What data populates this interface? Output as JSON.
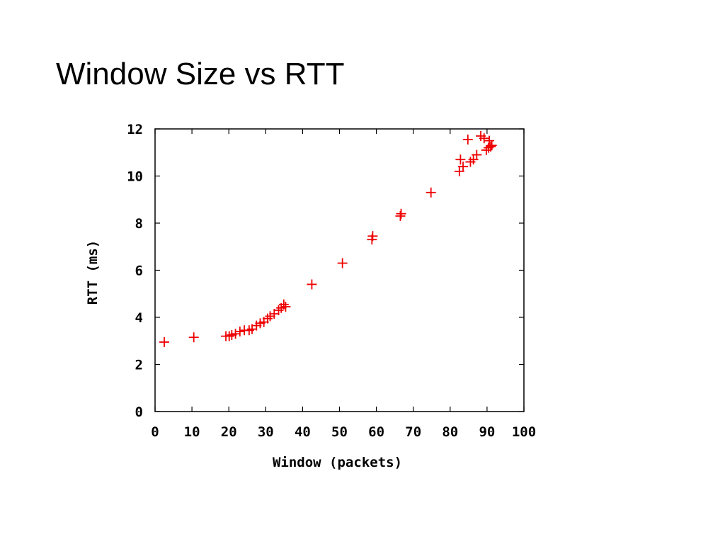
{
  "slide": {
    "title": "Window Size vs RTT"
  },
  "chart_data": {
    "type": "scatter",
    "title": "",
    "xlabel": "Window (packets)",
    "ylabel": "RTT (ms)",
    "xlim": [
      0,
      100
    ],
    "ylim": [
      0,
      12
    ],
    "xticks": [
      0,
      10,
      20,
      30,
      40,
      50,
      60,
      70,
      80,
      90,
      100
    ],
    "yticks": [
      0,
      2,
      4,
      6,
      8,
      10,
      12
    ],
    "grid": false,
    "legend": false,
    "marker": "plus",
    "colors": {
      "marker": "#ee0000",
      "axis": "#000000"
    },
    "series": [
      {
        "points": [
          [
            2.5,
            2.95
          ],
          [
            10.5,
            3.15
          ],
          [
            19.2,
            3.2
          ],
          [
            20.1,
            3.2
          ],
          [
            20.8,
            3.25
          ],
          [
            21.8,
            3.3
          ],
          [
            23.0,
            3.4
          ],
          [
            24.2,
            3.45
          ],
          [
            25.5,
            3.45
          ],
          [
            26.3,
            3.5
          ],
          [
            27.5,
            3.65
          ],
          [
            28.5,
            3.75
          ],
          [
            29.5,
            3.8
          ],
          [
            30.5,
            3.95
          ],
          [
            31.2,
            4.05
          ],
          [
            32.3,
            4.15
          ],
          [
            33.5,
            4.3
          ],
          [
            34.2,
            4.4
          ],
          [
            34.9,
            4.55
          ],
          [
            35.4,
            4.45
          ],
          [
            42.5,
            5.4
          ],
          [
            50.8,
            6.3
          ],
          [
            58.8,
            7.3
          ],
          [
            59.0,
            7.45
          ],
          [
            66.5,
            8.3
          ],
          [
            66.7,
            8.4
          ],
          [
            74.8,
            9.3
          ],
          [
            82.5,
            10.2
          ],
          [
            83.5,
            10.4
          ],
          [
            82.8,
            10.7
          ],
          [
            85.5,
            10.6
          ],
          [
            86.3,
            10.7
          ],
          [
            87.2,
            10.9
          ],
          [
            84.8,
            11.55
          ],
          [
            88.3,
            11.7
          ],
          [
            89.2,
            11.6
          ],
          [
            89.8,
            11.1
          ],
          [
            90.4,
            11.2
          ],
          [
            91.0,
            11.25
          ],
          [
            91.3,
            11.3
          ],
          [
            90.6,
            11.5
          ]
        ]
      }
    ]
  }
}
